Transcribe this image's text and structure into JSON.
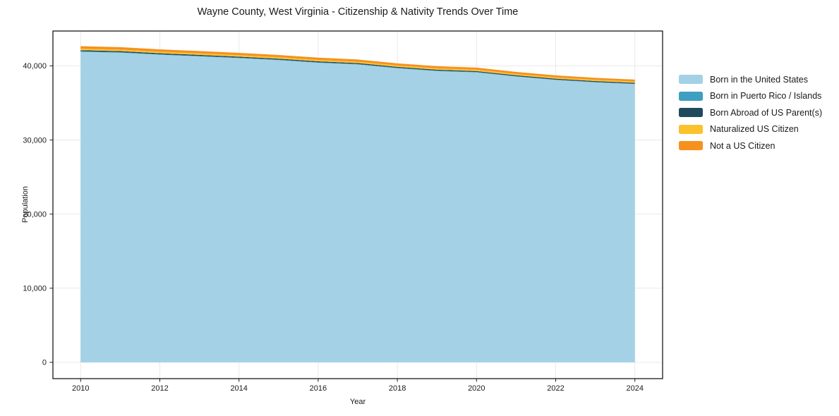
{
  "chart_data": {
    "type": "area",
    "stacked": true,
    "title": "Wayne County, West Virginia - Citizenship & Nativity Trends Over Time",
    "xlabel": "Year",
    "ylabel": "Population",
    "x": [
      2010,
      2011,
      2012,
      2013,
      2014,
      2015,
      2016,
      2017,
      2018,
      2019,
      2020,
      2021,
      2022,
      2023,
      2024
    ],
    "series": [
      {
        "name": "Born in the United States",
        "color": "#a4d1e6",
        "values": [
          41900,
          41780,
          41500,
          41280,
          41050,
          40780,
          40420,
          40190,
          39680,
          39300,
          39120,
          38560,
          38100,
          37780,
          37550
        ]
      },
      {
        "name": "Born in Puerto Rico / Islands",
        "color": "#3e9fc1",
        "values": [
          60,
          60,
          55,
          55,
          50,
          50,
          50,
          50,
          45,
          45,
          45,
          40,
          40,
          40,
          40
        ]
      },
      {
        "name": "Born Abroad of US Parent(s)",
        "color": "#1f4a5e",
        "values": [
          150,
          150,
          145,
          145,
          140,
          140,
          140,
          135,
          135,
          135,
          130,
          130,
          130,
          125,
          125
        ]
      },
      {
        "name": "Naturalized US Citizen",
        "color": "#fcc22d",
        "values": [
          210,
          205,
          205,
          200,
          200,
          195,
          195,
          190,
          190,
          185,
          185,
          180,
          180,
          175,
          170
        ]
      },
      {
        "name": "Not a US Citizen",
        "color": "#f6911e",
        "values": [
          330,
          325,
          320,
          315,
          310,
          305,
          300,
          295,
          290,
          285,
          280,
          275,
          270,
          265,
          260
        ]
      }
    ],
    "x_ticks": [
      2010,
      2012,
      2014,
      2016,
      2018,
      2020,
      2022,
      2024
    ],
    "x_tick_labels": [
      "2010",
      "2012",
      "2014",
      "2016",
      "2018",
      "2020",
      "2022",
      "2024"
    ],
    "y_ticks": [
      0,
      10000,
      20000,
      30000,
      40000
    ],
    "y_tick_labels": [
      "0",
      "10,000",
      "20,000",
      "30,000",
      "40,000"
    ],
    "xlim": [
      2009.3,
      2024.7
    ],
    "ylim": [
      -2200,
      44700
    ],
    "grid": true,
    "legend_position": "right",
    "style": {
      "grid_color": "#e9e9e9",
      "spine_color": "#1a1a1a",
      "tick_color": "#1a1a1a",
      "background": "#ffffff"
    }
  }
}
